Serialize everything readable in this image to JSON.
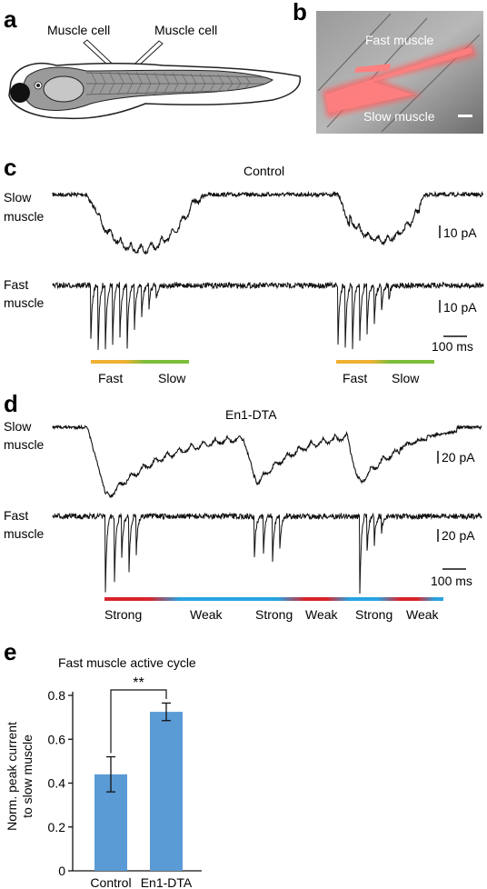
{
  "panels": {
    "a": {
      "letter": "a",
      "electrode_left_label": "Muscle cell",
      "electrode_right_label": "Muscle cell"
    },
    "b": {
      "letter": "b",
      "fast_label": "Fast muscle",
      "slow_label": "Slow muscle"
    },
    "c": {
      "letter": "c",
      "title": "Control",
      "row1_label_line1": "Slow",
      "row1_label_line2": "muscle",
      "row2_label_line1": "Fast",
      "row2_label_line2": "muscle",
      "scale1": "10 pA",
      "scale2": "10 pA",
      "time_scale": "100 ms",
      "phase_labels": [
        "Fast",
        "Slow",
        "Fast",
        "Slow"
      ],
      "colors": {
        "fast": "#f0b032",
        "slow": "#7dbd3a"
      }
    },
    "d": {
      "letter": "d",
      "title": "En1-DTA",
      "row1_label_line1": "Slow",
      "row1_label_line2": "muscle",
      "row2_label_line1": "Fast",
      "row2_label_line2": "muscle",
      "scale1": "20 pA",
      "scale2": "20 pA",
      "time_scale": "100 ms",
      "phase_labels": [
        "Strong",
        "Weak",
        "Strong",
        "Weak",
        "Strong",
        "Weak"
      ],
      "colors": {
        "strong": "#d8232a",
        "weak": "#29a3e0"
      }
    },
    "e": {
      "letter": "e",
      "title": "Fast muscle active cycle",
      "ylabel_line1": "Norm. peak current",
      "ylabel_line2": "to slow muscle",
      "significance": "**",
      "bar_color": "#5b9bd5"
    }
  },
  "chart_data": {
    "type": "bar",
    "title": "Fast muscle active cycle",
    "categories": [
      "Control",
      "En1-DTA"
    ],
    "values": [
      0.44,
      0.725
    ],
    "errors": [
      0.08,
      0.04
    ],
    "ylabel": "Norm. peak current to slow muscle",
    "ylim": [
      0,
      0.8
    ],
    "yticks": [
      "0",
      "0.2",
      "0.4",
      "0.6",
      "0.8"
    ],
    "ytick_values": [
      0,
      0.2,
      0.4,
      0.6,
      0.8
    ],
    "grid": false,
    "annotation": "**"
  }
}
